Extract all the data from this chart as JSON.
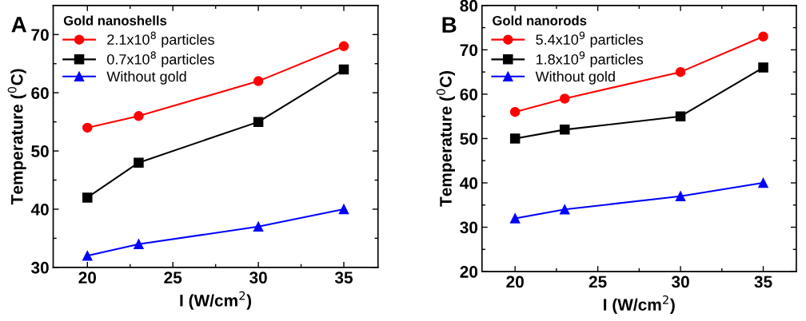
{
  "chart_data": [
    {
      "type": "line",
      "legend_title": "Gold nanoshells",
      "xlabel": "I (W/cm$^{2}$)",
      "ylabel": "Temperature ($^{0}$C)",
      "annotations": [
        "A"
      ],
      "x": [
        20,
        23,
        30,
        35
      ],
      "xlim": [
        18,
        37
      ],
      "xticks": [
        20,
        25,
        30,
        35
      ],
      "ylim": [
        30,
        75
      ],
      "yticks": [
        30,
        40,
        50,
        60,
        70
      ],
      "legend": "top left",
      "grid": false,
      "line_style": "solid",
      "series": [
        {
          "name": "2.1x10$^{8}$ particles",
          "color": "#ff0000",
          "marker": "circle",
          "values": [
            54,
            56,
            62,
            68
          ]
        },
        {
          "name": "0.7x10$^{8}$ particles",
          "color": "#000000",
          "marker": "square",
          "values": [
            42,
            48,
            55,
            64
          ]
        },
        {
          "name": "Without gold",
          "color": "#0000ff",
          "marker": "triangle",
          "values": [
            32,
            34,
            37,
            40
          ]
        }
      ]
    },
    {
      "type": "line",
      "legend_title": "Gold nanorods",
      "xlabel": "I (W/cm$^{2}$)",
      "ylabel": "Temperature ($^{0}$C)",
      "annotations": [
        "B"
      ],
      "x": [
        20,
        23,
        30,
        35
      ],
      "xlim": [
        18,
        37
      ],
      "xticks": [
        20,
        25,
        30,
        35
      ],
      "ylim": [
        20,
        80
      ],
      "yticks": [
        20,
        30,
        40,
        50,
        60,
        70,
        80
      ],
      "legend": "top left",
      "grid": false,
      "line_style": "solid",
      "series": [
        {
          "name": "5.4x10$^{9}$ particles",
          "color": "#ff0000",
          "marker": "circle",
          "values": [
            56,
            59,
            65,
            73
          ]
        },
        {
          "name": "1.8x10$^{9}$ particles",
          "color": "#000000",
          "marker": "square",
          "values": [
            50,
            52,
            55,
            66
          ]
        },
        {
          "name": "Without gold",
          "color": "#0000ff",
          "marker": "triangle",
          "values": [
            32,
            34,
            37,
            40
          ]
        }
      ]
    }
  ]
}
